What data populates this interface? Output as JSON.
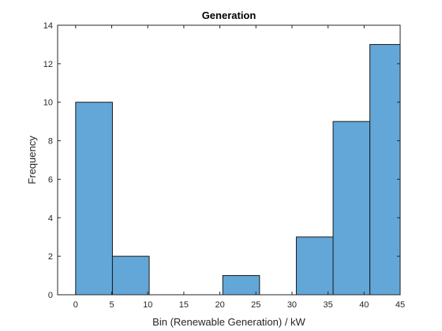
{
  "chart_data": {
    "type": "bar",
    "title": "Generation",
    "xlabel": "Bin (Renewable Generation) / kW",
    "ylabel": "Frequency",
    "xlim": [
      -2.5,
      45
    ],
    "ylim": [
      0,
      14
    ],
    "xticks": [
      0,
      5,
      10,
      15,
      20,
      25,
      30,
      35,
      40,
      45
    ],
    "yticks": [
      0,
      2,
      4,
      6,
      8,
      10,
      12,
      14
    ],
    "bin_edges": [
      0,
      5.1,
      10.2,
      15.3,
      20.4,
      25.5,
      30.6,
      35.7,
      40.8,
      45.9
    ],
    "bins": [
      {
        "x0": 0.0,
        "x1": 5.1,
        "value": 10
      },
      {
        "x0": 5.1,
        "x1": 10.2,
        "value": 2
      },
      {
        "x0": 10.2,
        "x1": 15.3,
        "value": 0
      },
      {
        "x0": 15.3,
        "x1": 20.4,
        "value": 0
      },
      {
        "x0": 20.4,
        "x1": 25.5,
        "value": 1
      },
      {
        "x0": 25.5,
        "x1": 30.6,
        "value": 0
      },
      {
        "x0": 30.6,
        "x1": 35.7,
        "value": 3
      },
      {
        "x0": 35.7,
        "x1": 40.8,
        "value": 9
      },
      {
        "x0": 40.8,
        "x1": 45.9,
        "value": 13
      }
    ],
    "grid": false,
    "bar_color": "#63a6d8",
    "edge_color": "#1a1a1a"
  }
}
